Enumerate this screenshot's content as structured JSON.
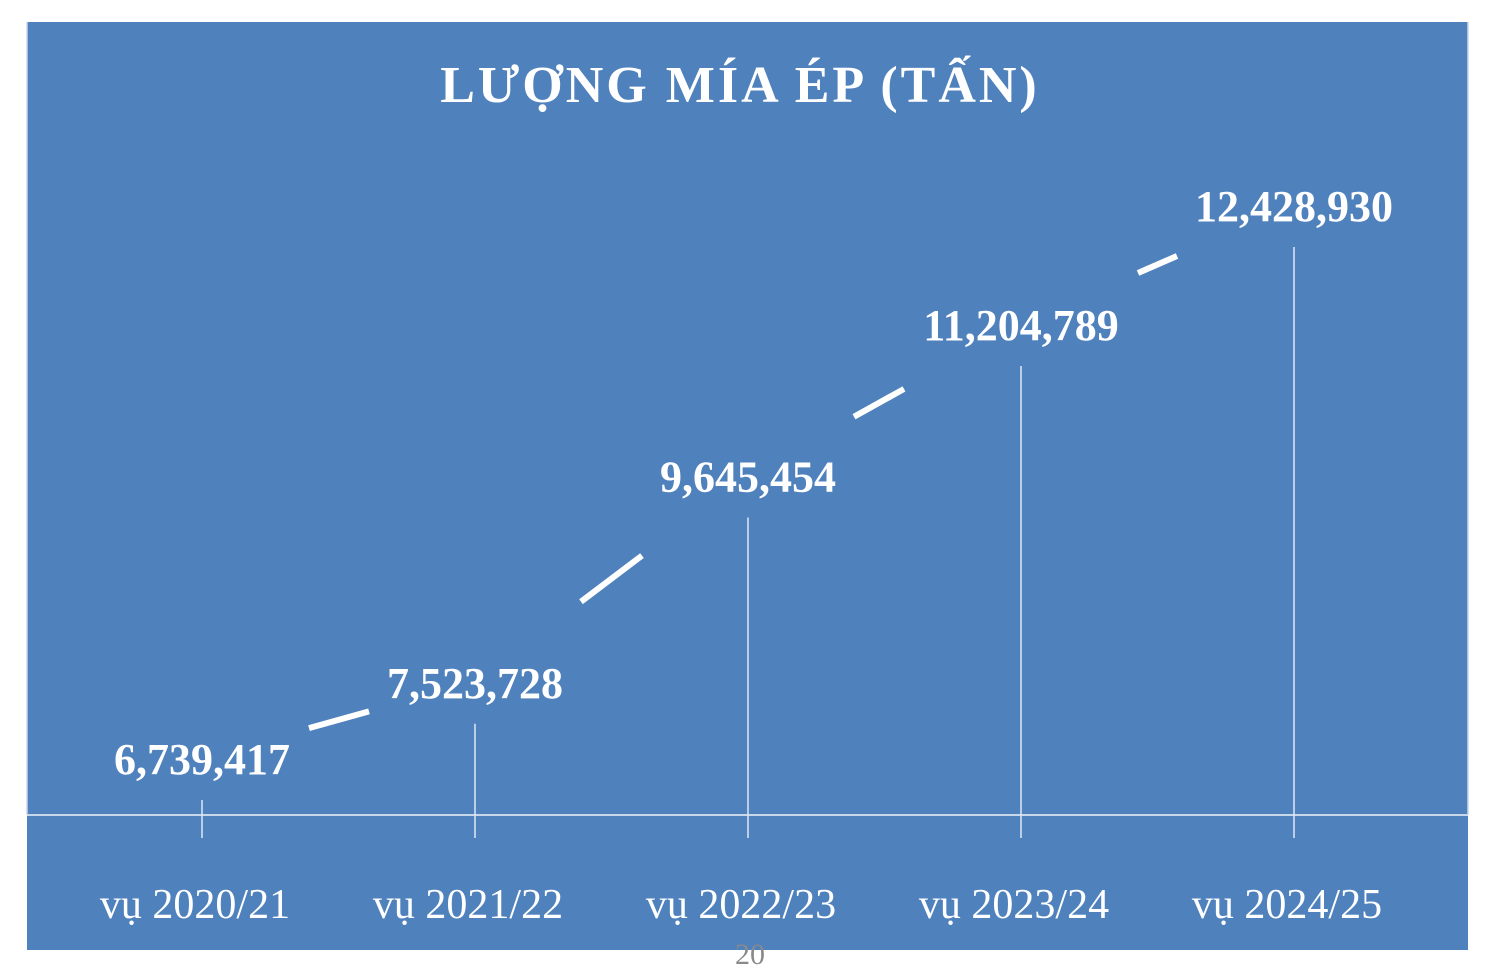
{
  "page_number": "20",
  "colors": {
    "background": "#4f81bd",
    "line": "#ffffff",
    "text": "#ffffff",
    "drop_line": "#dfe8f3"
  },
  "chart_data": {
    "type": "line",
    "title": "LƯỢNG MÍA ÉP (TẤN)",
    "xlabel": "",
    "ylabel": "",
    "categories": [
      "vụ 2020/21",
      "vụ 2021/22",
      "vụ 2022/23",
      "vụ 2023/24",
      "vụ 2024/25"
    ],
    "values": [
      6739417,
      7523728,
      9645454,
      11204789,
      12428930
    ],
    "data_labels": [
      "6,739,417",
      "7,523,728",
      "9,645,454",
      "11,204,789",
      "12,428,930"
    ],
    "grid": false,
    "legend": "none",
    "drop_lines": true
  }
}
